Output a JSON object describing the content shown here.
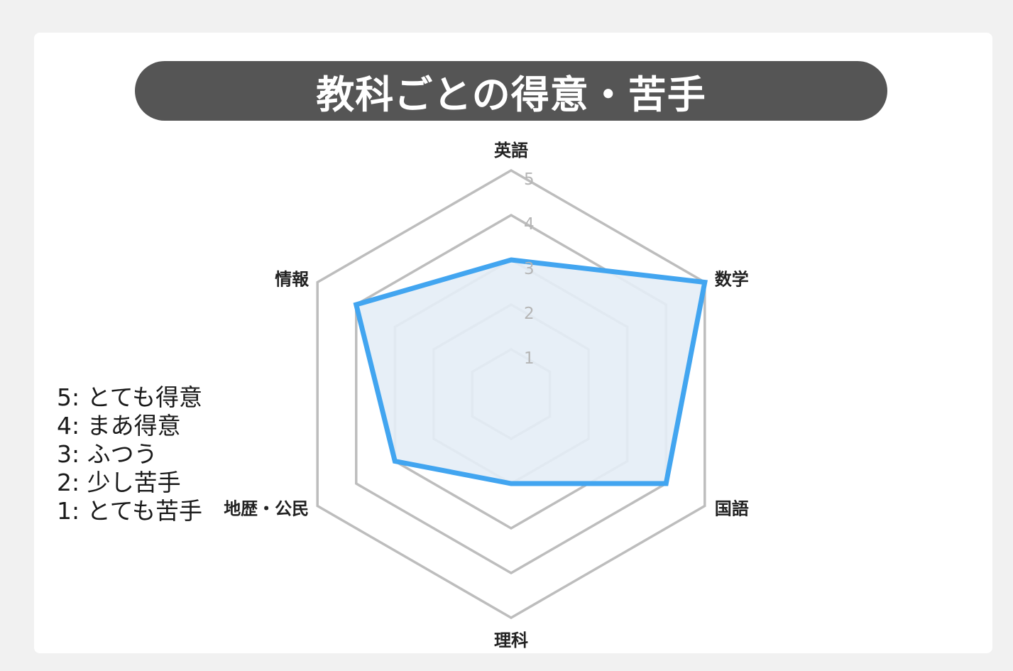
{
  "title": "教科ごとの得意・苦手",
  "scale_legend": [
    "5: とても得意",
    "4: まあ得意",
    "3: ふつう",
    "2: 少し苦手",
    "1: とても苦手"
  ],
  "colors": {
    "series_line": "#42a5f0",
    "series_fill": "#e4edf6",
    "grid": "#bdbdbd",
    "title_bar": "#555555"
  },
  "chart_data": {
    "type": "radar",
    "categories": [
      "英語",
      "数学",
      "国語",
      "理科",
      "地歴・公民",
      "情報"
    ],
    "values": [
      3,
      5,
      4,
      2,
      3,
      4
    ],
    "rlim": [
      0,
      5
    ],
    "ticks": [
      "1",
      "2",
      "3",
      "4",
      "5"
    ],
    "grid": true
  }
}
